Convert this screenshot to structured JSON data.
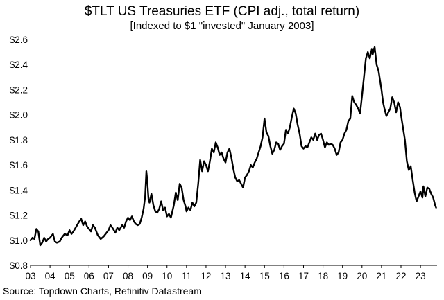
{
  "chart_data": {
    "type": "line",
    "title": "$TLT US Treasuries ETF (CPI adj., total return)",
    "subtitle": "[Indexed to $1 \"invested\" January 2003]",
    "source": "Source: Topdown Charts, Refinitiv Datastream",
    "xlabel": "",
    "ylabel": "",
    "xlim": [
      2003.0,
      2023.85
    ],
    "ylim": [
      0.8,
      2.6
    ],
    "yticks": [
      {
        "value": 0.8,
        "label": "$0.8"
      },
      {
        "value": 1.0,
        "label": "$1.0"
      },
      {
        "value": 1.2,
        "label": "$1.2"
      },
      {
        "value": 1.4,
        "label": "$1.4"
      },
      {
        "value": 1.6,
        "label": "$1.6"
      },
      {
        "value": 1.8,
        "label": "$1.8"
      },
      {
        "value": 2.0,
        "label": "$2.0"
      },
      {
        "value": 2.2,
        "label": "$2.2"
      },
      {
        "value": 2.4,
        "label": "$2.4"
      },
      {
        "value": 2.6,
        "label": "$2.6"
      }
    ],
    "xticks": [
      {
        "value": 2003,
        "label": "03"
      },
      {
        "value": 2004,
        "label": "04"
      },
      {
        "value": 2005,
        "label": "05"
      },
      {
        "value": 2006,
        "label": "06"
      },
      {
        "value": 2007,
        "label": "07"
      },
      {
        "value": 2008,
        "label": "08"
      },
      {
        "value": 2009,
        "label": "09"
      },
      {
        "value": 2010,
        "label": "10"
      },
      {
        "value": 2011,
        "label": "11"
      },
      {
        "value": 2012,
        "label": "12"
      },
      {
        "value": 2013,
        "label": "13"
      },
      {
        "value": 2014,
        "label": "14"
      },
      {
        "value": 2015,
        "label": "15"
      },
      {
        "value": 2016,
        "label": "16"
      },
      {
        "value": 2017,
        "label": "17"
      },
      {
        "value": 2018,
        "label": "18"
      },
      {
        "value": 2019,
        "label": "19"
      },
      {
        "value": 2020,
        "label": "20"
      },
      {
        "value": 2021,
        "label": "21"
      },
      {
        "value": 2022,
        "label": "22"
      },
      {
        "value": 2023,
        "label": "23"
      }
    ],
    "grid": false,
    "series": [
      {
        "name": "$TLT US Treasuries ETF (CPI adj., total return)",
        "color": "#000000",
        "points": [
          [
            2003.0,
            1.0
          ],
          [
            2003.1,
            1.02
          ],
          [
            2003.2,
            1.01
          ],
          [
            2003.3,
            1.09
          ],
          [
            2003.4,
            1.07
          ],
          [
            2003.5,
            0.96
          ],
          [
            2003.6,
            0.98
          ],
          [
            2003.7,
            1.02
          ],
          [
            2003.8,
            0.99
          ],
          [
            2003.9,
            1.01
          ],
          [
            2004.0,
            1.02
          ],
          [
            2004.15,
            1.05
          ],
          [
            2004.25,
            0.99
          ],
          [
            2004.35,
            0.98
          ],
          [
            2004.5,
            0.99
          ],
          [
            2004.6,
            1.02
          ],
          [
            2004.75,
            1.05
          ],
          [
            2004.9,
            1.04
          ],
          [
            2005.0,
            1.08
          ],
          [
            2005.1,
            1.05
          ],
          [
            2005.2,
            1.07
          ],
          [
            2005.35,
            1.11
          ],
          [
            2005.5,
            1.15
          ],
          [
            2005.6,
            1.17
          ],
          [
            2005.7,
            1.12
          ],
          [
            2005.8,
            1.15
          ],
          [
            2005.9,
            1.11
          ],
          [
            2006.0,
            1.09
          ],
          [
            2006.1,
            1.07
          ],
          [
            2006.2,
            1.12
          ],
          [
            2006.3,
            1.1
          ],
          [
            2006.45,
            1.04
          ],
          [
            2006.6,
            1.01
          ],
          [
            2006.75,
            1.03
          ],
          [
            2006.9,
            1.06
          ],
          [
            2007.0,
            1.08
          ],
          [
            2007.1,
            1.12
          ],
          [
            2007.2,
            1.1
          ],
          [
            2007.35,
            1.06
          ],
          [
            2007.45,
            1.1
          ],
          [
            2007.55,
            1.08
          ],
          [
            2007.7,
            1.12
          ],
          [
            2007.8,
            1.1
          ],
          [
            2007.9,
            1.15
          ],
          [
            2008.0,
            1.18
          ],
          [
            2008.1,
            1.16
          ],
          [
            2008.2,
            1.19
          ],
          [
            2008.3,
            1.15
          ],
          [
            2008.4,
            1.13
          ],
          [
            2008.5,
            1.12
          ],
          [
            2008.6,
            1.13
          ],
          [
            2008.7,
            1.18
          ],
          [
            2008.8,
            1.25
          ],
          [
            2008.88,
            1.35
          ],
          [
            2008.94,
            1.55
          ],
          [
            2008.98,
            1.49
          ],
          [
            2009.05,
            1.33
          ],
          [
            2009.1,
            1.3
          ],
          [
            2009.2,
            1.37
          ],
          [
            2009.3,
            1.28
          ],
          [
            2009.4,
            1.23
          ],
          [
            2009.5,
            1.22
          ],
          [
            2009.6,
            1.25
          ],
          [
            2009.7,
            1.31
          ],
          [
            2009.8,
            1.24
          ],
          [
            2009.9,
            1.26
          ],
          [
            2010.0,
            1.19
          ],
          [
            2010.1,
            1.21
          ],
          [
            2010.2,
            1.18
          ],
          [
            2010.35,
            1.28
          ],
          [
            2010.45,
            1.38
          ],
          [
            2010.55,
            1.32
          ],
          [
            2010.65,
            1.45
          ],
          [
            2010.75,
            1.42
          ],
          [
            2010.85,
            1.32
          ],
          [
            2010.95,
            1.27
          ],
          [
            2011.0,
            1.23
          ],
          [
            2011.1,
            1.26
          ],
          [
            2011.2,
            1.24
          ],
          [
            2011.3,
            1.3
          ],
          [
            2011.4,
            1.27
          ],
          [
            2011.5,
            1.3
          ],
          [
            2011.6,
            1.45
          ],
          [
            2011.7,
            1.64
          ],
          [
            2011.8,
            1.55
          ],
          [
            2011.9,
            1.63
          ],
          [
            2012.0,
            1.6
          ],
          [
            2012.1,
            1.55
          ],
          [
            2012.2,
            1.63
          ],
          [
            2012.3,
            1.73
          ],
          [
            2012.4,
            1.7
          ],
          [
            2012.5,
            1.78
          ],
          [
            2012.6,
            1.74
          ],
          [
            2012.7,
            1.68
          ],
          [
            2012.8,
            1.7
          ],
          [
            2012.9,
            1.65
          ],
          [
            2013.0,
            1.62
          ],
          [
            2013.1,
            1.7
          ],
          [
            2013.2,
            1.73
          ],
          [
            2013.3,
            1.66
          ],
          [
            2013.4,
            1.57
          ],
          [
            2013.5,
            1.5
          ],
          [
            2013.6,
            1.47
          ],
          [
            2013.7,
            1.48
          ],
          [
            2013.8,
            1.45
          ],
          [
            2013.9,
            1.42
          ],
          [
            2014.0,
            1.5
          ],
          [
            2014.1,
            1.52
          ],
          [
            2014.2,
            1.55
          ],
          [
            2014.3,
            1.6
          ],
          [
            2014.4,
            1.58
          ],
          [
            2014.5,
            1.62
          ],
          [
            2014.6,
            1.65
          ],
          [
            2014.7,
            1.7
          ],
          [
            2014.8,
            1.75
          ],
          [
            2014.9,
            1.82
          ],
          [
            2015.0,
            1.97
          ],
          [
            2015.1,
            1.86
          ],
          [
            2015.2,
            1.83
          ],
          [
            2015.3,
            1.75
          ],
          [
            2015.4,
            1.69
          ],
          [
            2015.5,
            1.72
          ],
          [
            2015.6,
            1.78
          ],
          [
            2015.7,
            1.77
          ],
          [
            2015.8,
            1.72
          ],
          [
            2015.9,
            1.75
          ],
          [
            2016.0,
            1.77
          ],
          [
            2016.1,
            1.88
          ],
          [
            2016.2,
            1.85
          ],
          [
            2016.3,
            1.9
          ],
          [
            2016.4,
            1.98
          ],
          [
            2016.5,
            2.05
          ],
          [
            2016.6,
            2.01
          ],
          [
            2016.7,
            1.92
          ],
          [
            2016.8,
            1.85
          ],
          [
            2016.9,
            1.75
          ],
          [
            2017.0,
            1.73
          ],
          [
            2017.1,
            1.75
          ],
          [
            2017.2,
            1.74
          ],
          [
            2017.3,
            1.78
          ],
          [
            2017.4,
            1.82
          ],
          [
            2017.5,
            1.8
          ],
          [
            2017.6,
            1.85
          ],
          [
            2017.7,
            1.8
          ],
          [
            2017.8,
            1.84
          ],
          [
            2017.9,
            1.85
          ],
          [
            2018.0,
            1.8
          ],
          [
            2018.1,
            1.74
          ],
          [
            2018.2,
            1.78
          ],
          [
            2018.3,
            1.76
          ],
          [
            2018.4,
            1.77
          ],
          [
            2018.5,
            1.76
          ],
          [
            2018.6,
            1.73
          ],
          [
            2018.7,
            1.68
          ],
          [
            2018.8,
            1.7
          ],
          [
            2018.9,
            1.78
          ],
          [
            2019.0,
            1.8
          ],
          [
            2019.1,
            1.85
          ],
          [
            2019.2,
            1.88
          ],
          [
            2019.3,
            1.95
          ],
          [
            2019.4,
            1.97
          ],
          [
            2019.5,
            2.15
          ],
          [
            2019.6,
            2.1
          ],
          [
            2019.7,
            2.08
          ],
          [
            2019.8,
            2.05
          ],
          [
            2019.9,
            2.01
          ],
          [
            2020.0,
            2.15
          ],
          [
            2020.1,
            2.3
          ],
          [
            2020.2,
            2.45
          ],
          [
            2020.3,
            2.5
          ],
          [
            2020.4,
            2.45
          ],
          [
            2020.5,
            2.52
          ],
          [
            2020.55,
            2.48
          ],
          [
            2020.65,
            2.54
          ],
          [
            2020.75,
            2.4
          ],
          [
            2020.85,
            2.35
          ],
          [
            2020.95,
            2.25
          ],
          [
            2021.0,
            2.2
          ],
          [
            2021.08,
            2.1
          ],
          [
            2021.15,
            2.05
          ],
          [
            2021.25,
            1.99
          ],
          [
            2021.35,
            2.02
          ],
          [
            2021.45,
            2.05
          ],
          [
            2021.55,
            2.14
          ],
          [
            2021.65,
            2.1
          ],
          [
            2021.75,
            2.02
          ],
          [
            2021.85,
            2.1
          ],
          [
            2021.95,
            2.06
          ],
          [
            2022.0,
            2.0
          ],
          [
            2022.1,
            1.9
          ],
          [
            2022.2,
            1.8
          ],
          [
            2022.3,
            1.63
          ],
          [
            2022.4,
            1.56
          ],
          [
            2022.5,
            1.59
          ],
          [
            2022.6,
            1.48
          ],
          [
            2022.7,
            1.38
          ],
          [
            2022.8,
            1.31
          ],
          [
            2022.9,
            1.35
          ],
          [
            2023.0,
            1.39
          ],
          [
            2023.1,
            1.34
          ],
          [
            2023.15,
            1.43
          ],
          [
            2023.25,
            1.35
          ],
          [
            2023.35,
            1.42
          ],
          [
            2023.45,
            1.41
          ],
          [
            2023.55,
            1.37
          ],
          [
            2023.65,
            1.34
          ],
          [
            2023.75,
            1.28
          ],
          [
            2023.8,
            1.26
          ]
        ]
      }
    ]
  }
}
